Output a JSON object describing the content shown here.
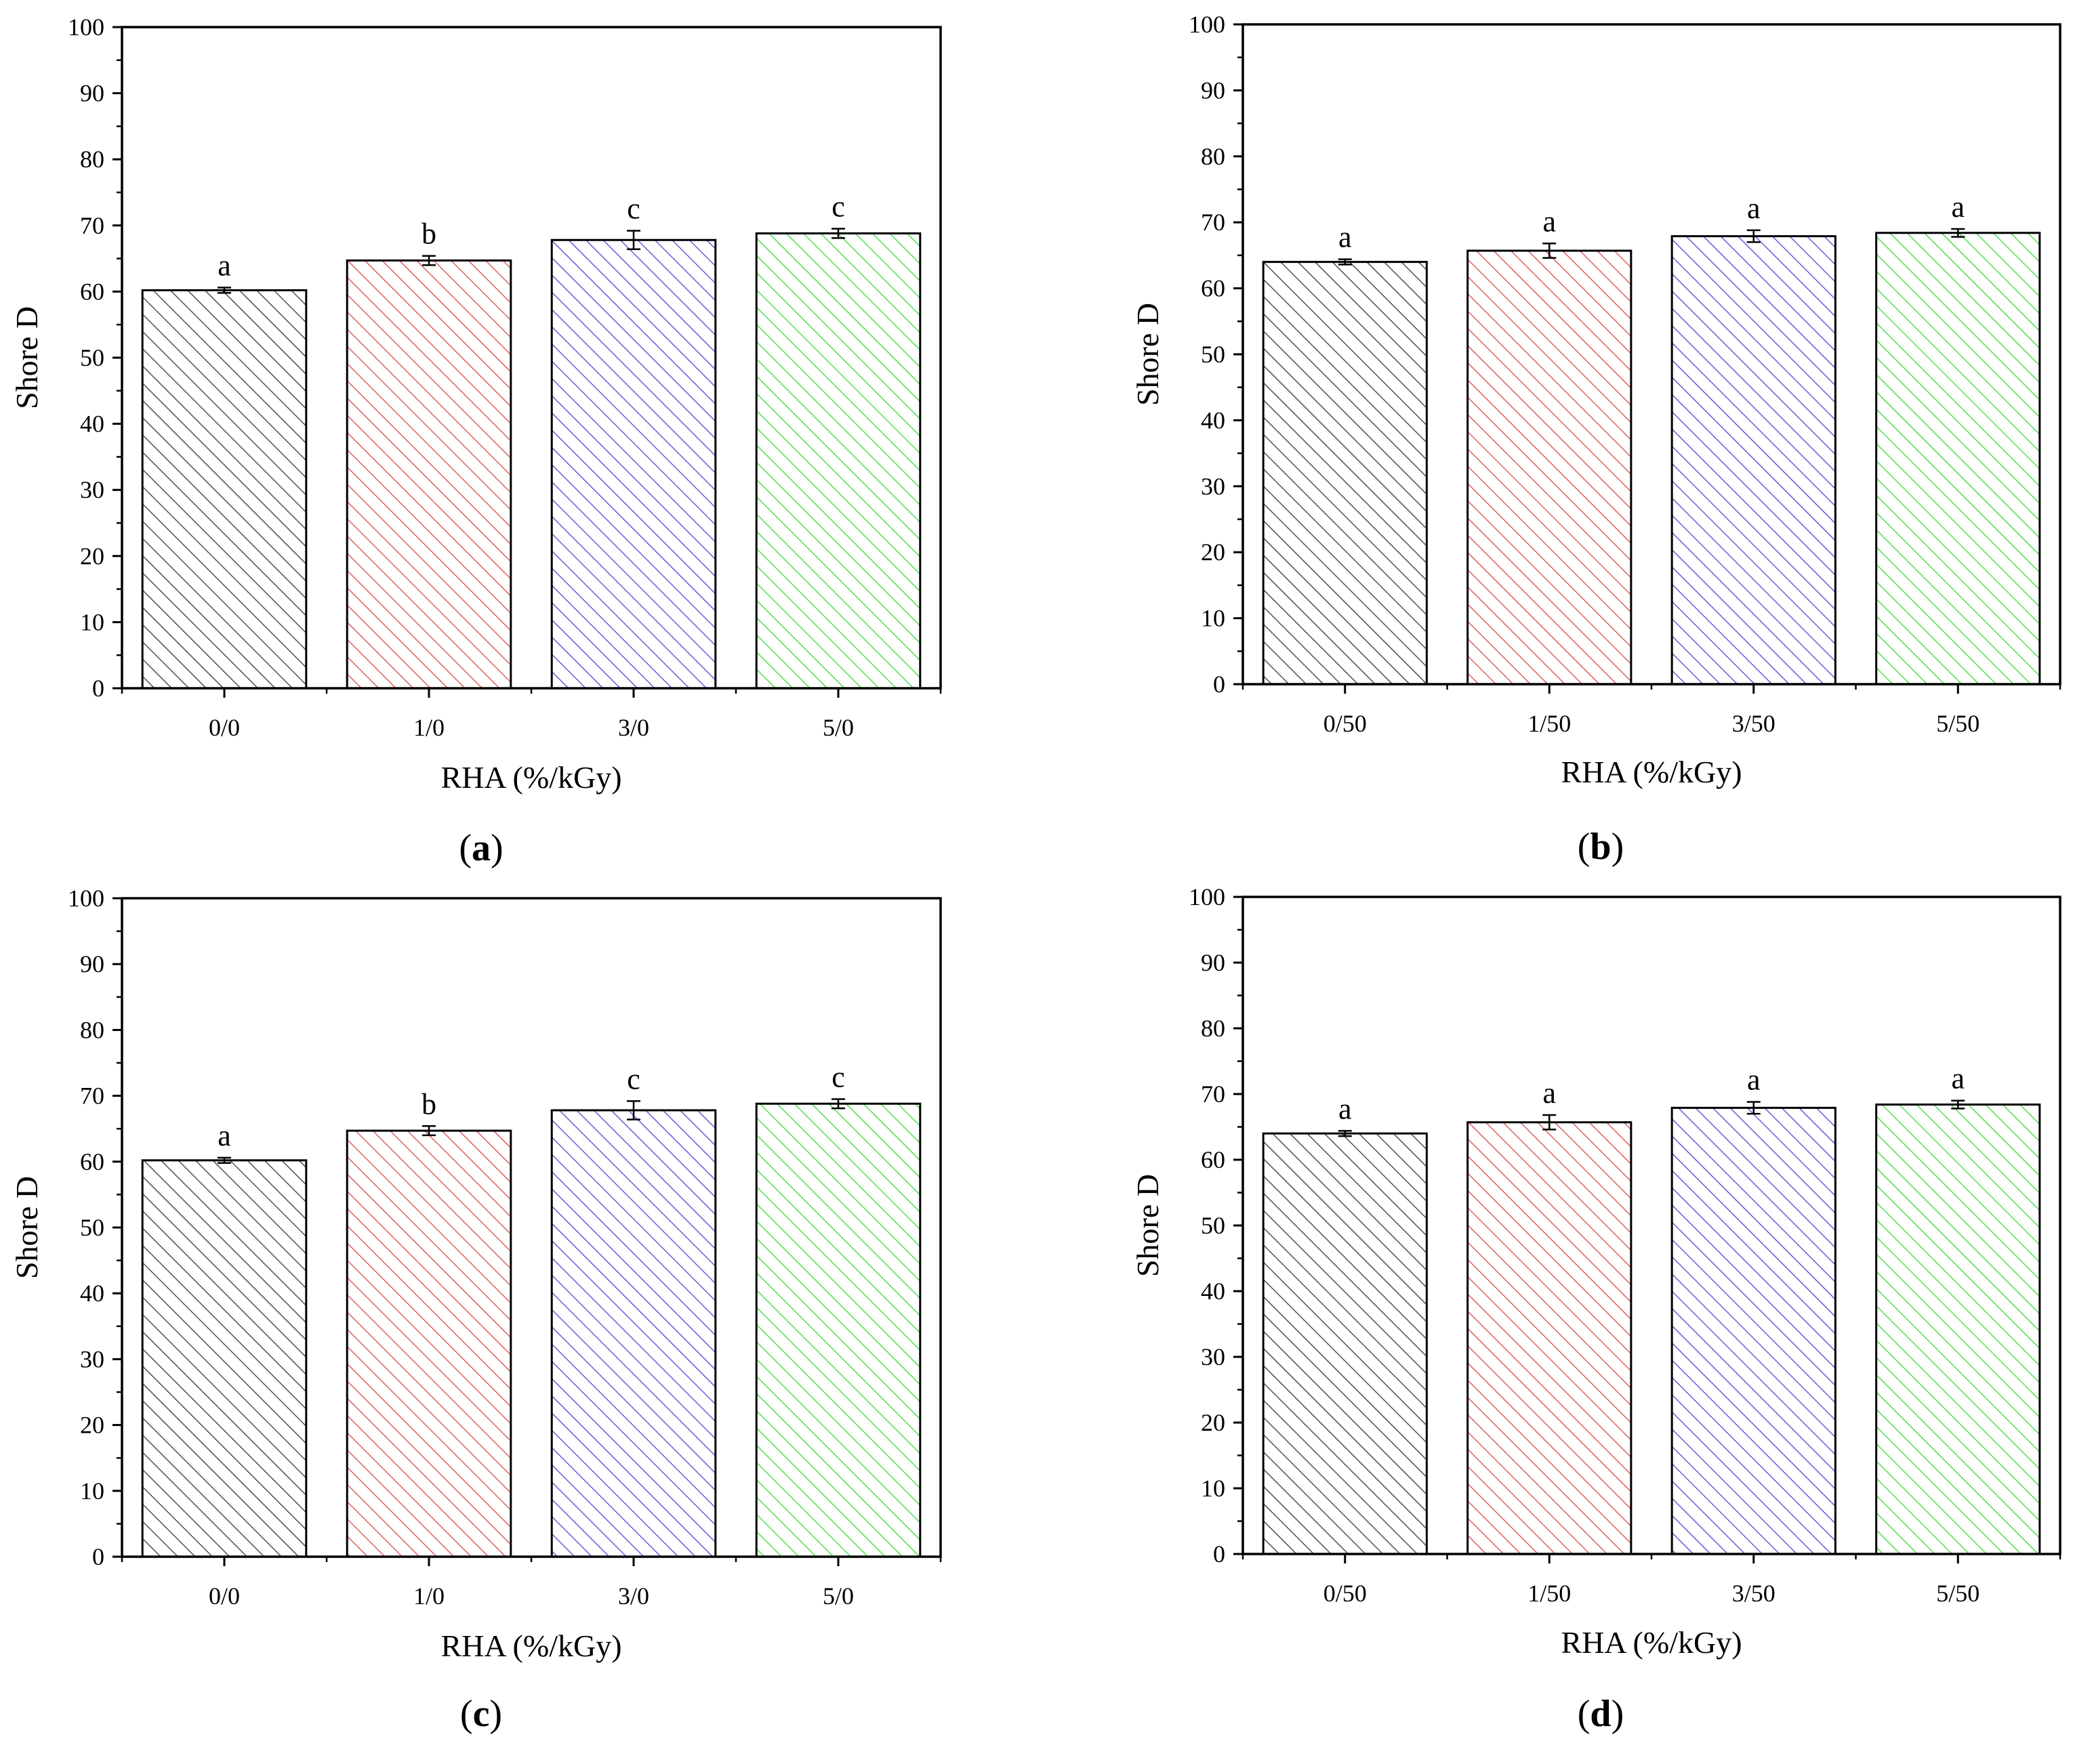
{
  "figure": {
    "hatch_colors": [
      "#505050",
      "#e06060",
      "#6060e0",
      "#50e050"
    ]
  },
  "chart_data": [
    {
      "type": "bar",
      "panel": "a",
      "panel_label": "(a)",
      "xlabel": "RHA (%/kGy)",
      "ylabel": "Shore D",
      "ylim": [
        0,
        100
      ],
      "yticks": [
        "0",
        "10",
        "20",
        "30",
        "40",
        "50",
        "60",
        "70",
        "80",
        "90",
        "100"
      ],
      "categories": [
        "0/0",
        "1/0",
        "3/0",
        "5/0"
      ],
      "values": [
        60.2,
        64.7,
        67.8,
        68.8
      ],
      "errors": [
        0.4,
        0.7,
        1.4,
        0.7
      ],
      "annotations": [
        "a",
        "b",
        "c",
        "c"
      ],
      "grid": false
    },
    {
      "type": "bar",
      "panel": "b",
      "panel_label": "(b)",
      "xlabel": "RHA (%/kGy)",
      "ylabel": "Shore D",
      "ylim": [
        0,
        100
      ],
      "yticks": [
        "0",
        "10",
        "20",
        "30",
        "40",
        "50",
        "60",
        "70",
        "80",
        "90",
        "100"
      ],
      "categories": [
        "0/50",
        "1/50",
        "3/50",
        "5/50"
      ],
      "values": [
        64.0,
        65.7,
        67.9,
        68.4
      ],
      "errors": [
        0.4,
        1.1,
        0.9,
        0.6
      ],
      "annotations": [
        "a",
        "a",
        "a",
        "a"
      ],
      "grid": false
    },
    {
      "type": "bar",
      "panel": "c",
      "panel_label": "(c)",
      "xlabel": "RHA (%/kGy)",
      "ylabel": "Shore D",
      "ylim": [
        0,
        100
      ],
      "yticks": [
        "0",
        "10",
        "20",
        "30",
        "40",
        "50",
        "60",
        "70",
        "80",
        "90",
        "100"
      ],
      "categories": [
        "0/0",
        "1/0",
        "3/0",
        "5/0"
      ],
      "values": [
        60.2,
        64.7,
        67.8,
        68.8
      ],
      "errors": [
        0.4,
        0.7,
        1.4,
        0.7
      ],
      "annotations": [
        "a",
        "b",
        "c",
        "c"
      ],
      "grid": false
    },
    {
      "type": "bar",
      "panel": "d",
      "panel_label": "(d)",
      "xlabel": "RHA (%/kGy)",
      "ylabel": "Shore D",
      "ylim": [
        0,
        100
      ],
      "yticks": [
        "0",
        "10",
        "20",
        "30",
        "40",
        "50",
        "60",
        "70",
        "80",
        "90",
        "100"
      ],
      "categories": [
        "0/50",
        "1/50",
        "3/50",
        "5/50"
      ],
      "values": [
        64.0,
        65.7,
        67.9,
        68.4
      ],
      "errors": [
        0.4,
        1.1,
        0.9,
        0.6
      ],
      "annotations": [
        "a",
        "a",
        "a",
        "a"
      ],
      "grid": false
    }
  ]
}
